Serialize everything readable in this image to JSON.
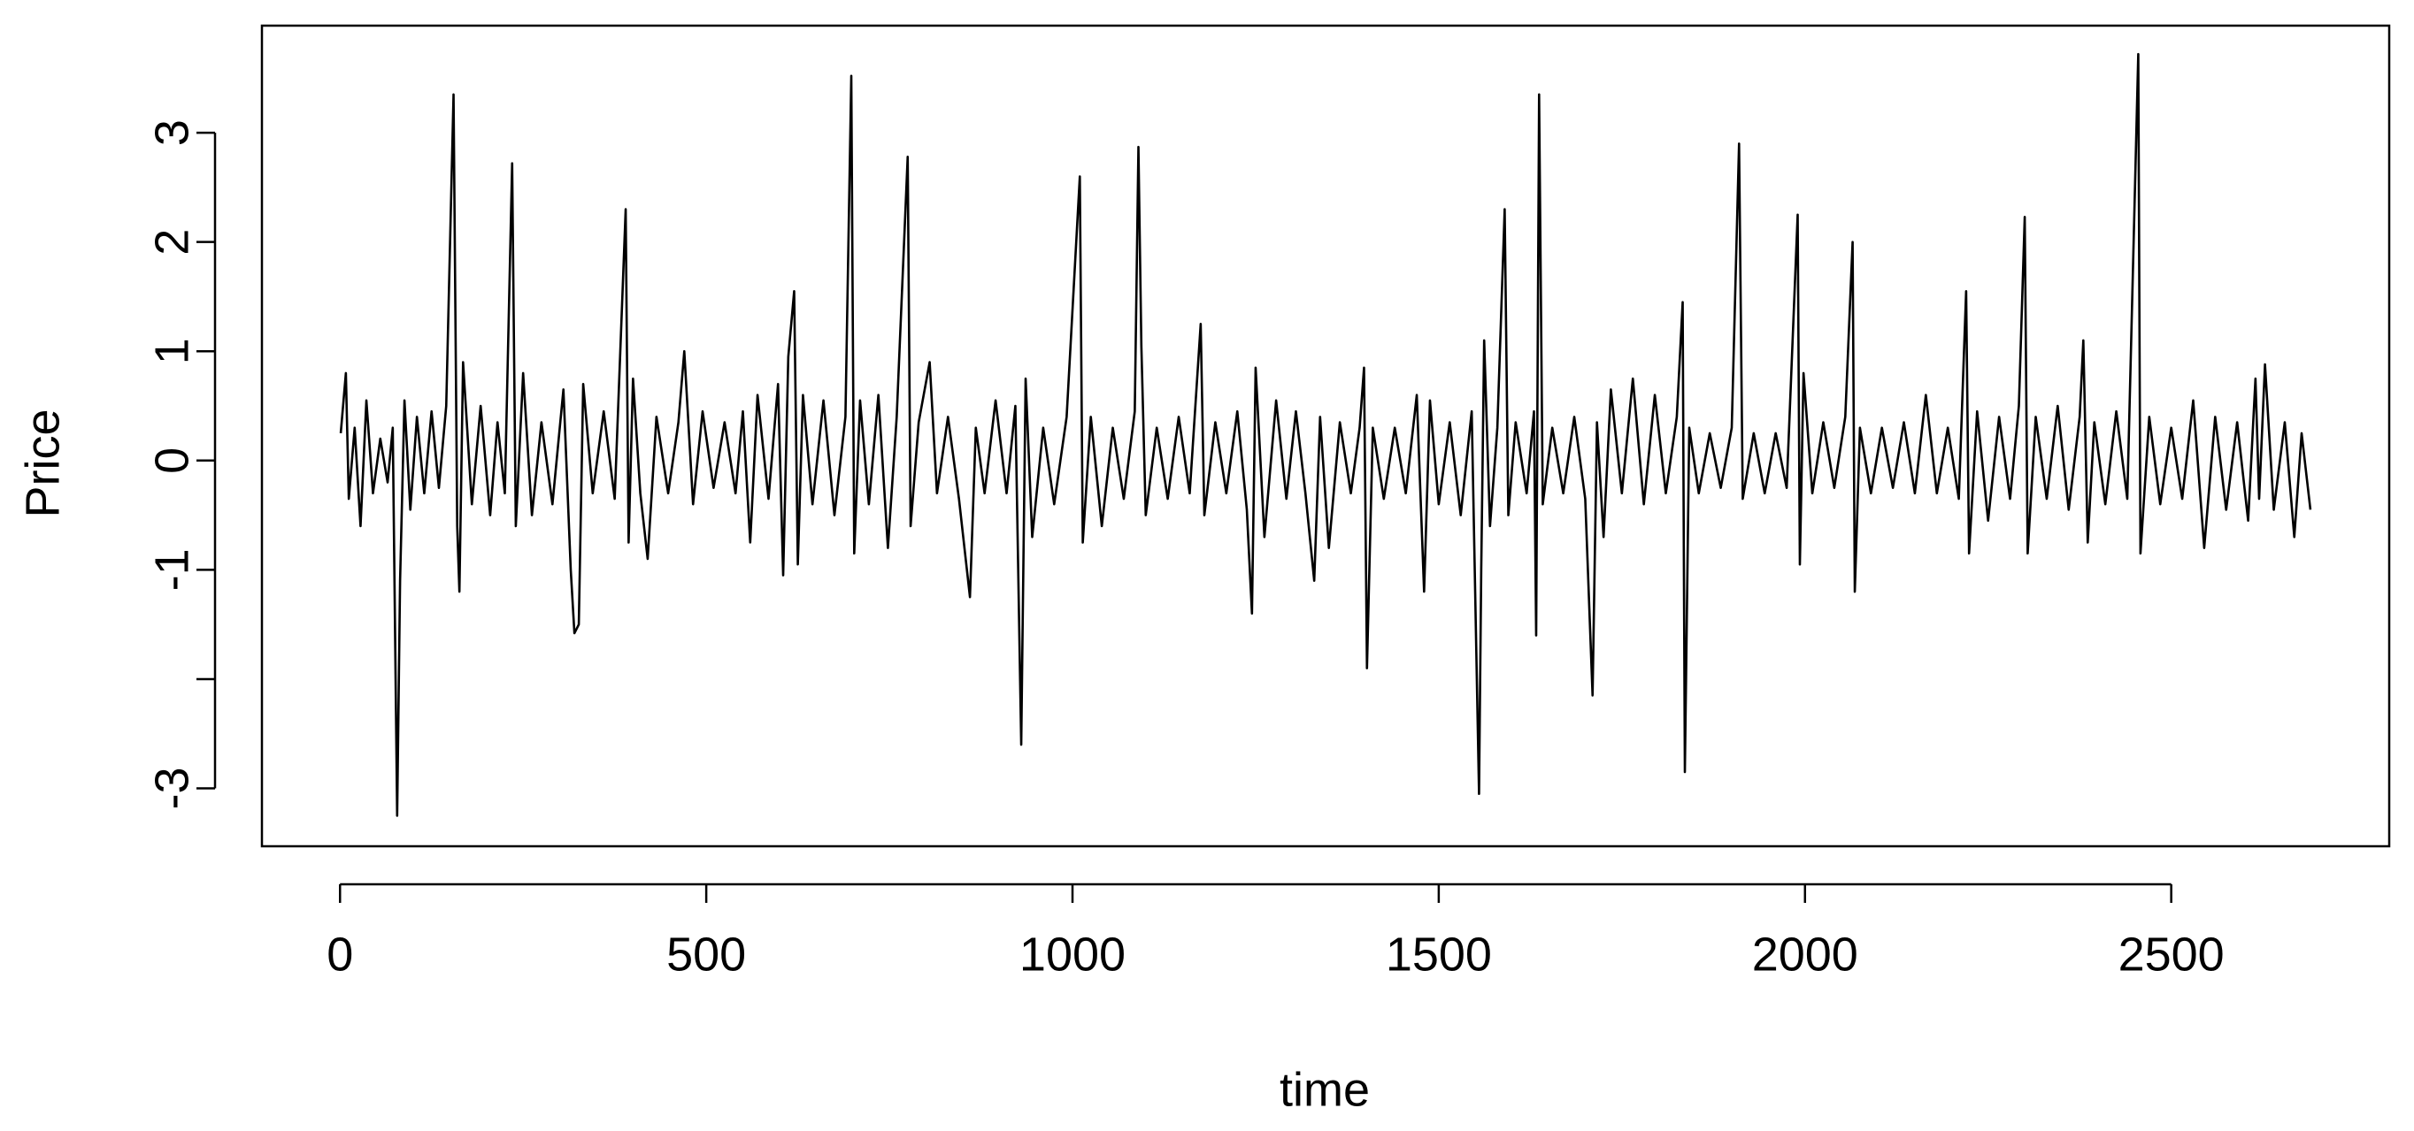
{
  "chart_data": {
    "type": "line",
    "xlabel": "time",
    "ylabel": "Price",
    "xlim": [
      -106.6,
      2797.6
    ],
    "ylim": [
      -3.53,
      3.98
    ],
    "xticks": [
      0,
      500,
      1000,
      1500,
      2000,
      2500
    ],
    "yticks": [
      -3,
      {
        "value": -2,
        "label": null
      },
      -1,
      0,
      1,
      2,
      3
    ],
    "color": "#000000",
    "box": true,
    "x": [
      1,
      8,
      12,
      20,
      28,
      36,
      45,
      55,
      65,
      72,
      78,
      82,
      88,
      96,
      105,
      115,
      125,
      135,
      145,
      155,
      160,
      163,
      168,
      180,
      192,
      205,
      215,
      225,
      235,
      240,
      250,
      262,
      275,
      290,
      305,
      315,
      320,
      326,
      332,
      345,
      360,
      375,
      390,
      394,
      400,
      410,
      420,
      432,
      448,
      462,
      470,
      482,
      495,
      510,
      525,
      540,
      550,
      560,
      570,
      585,
      598,
      605,
      612,
      620,
      625,
      632,
      645,
      660,
      675,
      690,
      698,
      702,
      710,
      722,
      735,
      748,
      760,
      775,
      779,
      790,
      805,
      815,
      830,
      845,
      860,
      868,
      880,
      895,
      910,
      922,
      930,
      936,
      945,
      960,
      975,
      992,
      1010,
      1014,
      1025,
      1040,
      1055,
      1070,
      1085,
      1090,
      1094,
      1100,
      1115,
      1130,
      1145,
      1160,
      1175,
      1180,
      1195,
      1210,
      1225,
      1238,
      1245,
      1250,
      1262,
      1278,
      1292,
      1305,
      1318,
      1330,
      1338,
      1350,
      1365,
      1380,
      1392,
      1398,
      1402,
      1410,
      1425,
      1440,
      1455,
      1470,
      1480,
      1488,
      1500,
      1515,
      1530,
      1545,
      1555,
      1558,
      1562,
      1570,
      1580,
      1590,
      1595,
      1605,
      1620,
      1630,
      1633,
      1637,
      1642,
      1655,
      1670,
      1685,
      1700,
      1710,
      1716,
      1725,
      1735,
      1750,
      1765,
      1780,
      1795,
      1810,
      1825,
      1833,
      1836,
      1842,
      1855,
      1870,
      1885,
      1900,
      1910,
      1915,
      1930,
      1945,
      1960,
      1975,
      1990,
      1993,
      1998,
      2010,
      2025,
      2040,
      2055,
      2065,
      2068,
      2075,
      2090,
      2105,
      2120,
      2135,
      2150,
      2165,
      2180,
      2195,
      2210,
      2220,
      2224,
      2235,
      2250,
      2265,
      2280,
      2292,
      2300,
      2304,
      2315,
      2330,
      2345,
      2360,
      2375,
      2380,
      2386,
      2395,
      2410,
      2425,
      2440,
      2455,
      2458,
      2470,
      2485,
      2500,
      2515,
      2530,
      2545,
      2560,
      2575,
      2590,
      2605,
      2615,
      2620,
      2628,
      2640,
      2655,
      2668,
      2678,
      2690
    ],
    "values": [
      0.25,
      0.8,
      -0.35,
      0.3,
      -0.6,
      0.55,
      -0.3,
      0.2,
      -0.2,
      0.3,
      -3.25,
      -1.1,
      0.55,
      -0.45,
      0.4,
      -0.3,
      0.45,
      -0.25,
      0.5,
      3.35,
      -0.6,
      -1.2,
      0.9,
      -0.4,
      0.5,
      -0.5,
      0.35,
      -0.3,
      2.72,
      -0.6,
      0.8,
      -0.5,
      0.35,
      -0.4,
      0.65,
      -1.0,
      -1.58,
      -1.5,
      0.7,
      -0.3,
      0.45,
      -0.35,
      2.3,
      -0.75,
      0.75,
      -0.3,
      -0.9,
      0.4,
      -0.3,
      0.35,
      1.0,
      -0.4,
      0.45,
      -0.25,
      0.35,
      -0.3,
      0.45,
      -0.75,
      0.6,
      -0.35,
      0.7,
      -1.05,
      0.95,
      1.55,
      -0.95,
      0.6,
      -0.4,
      0.55,
      -0.5,
      0.4,
      3.52,
      -0.85,
      0.55,
      -0.4,
      0.6,
      -0.8,
      0.4,
      2.78,
      -0.6,
      0.35,
      0.9,
      -0.3,
      0.4,
      -0.35,
      -1.25,
      0.3,
      -0.3,
      0.55,
      -0.3,
      0.5,
      -2.6,
      0.75,
      -0.7,
      0.3,
      -0.4,
      0.4,
      2.6,
      -0.75,
      0.4,
      -0.6,
      0.3,
      -0.35,
      0.45,
      2.87,
      1.05,
      -0.5,
      0.3,
      -0.35,
      0.4,
      -0.3,
      1.25,
      -0.5,
      0.35,
      -0.3,
      0.45,
      -0.45,
      -1.4,
      0.85,
      -0.7,
      0.55,
      -0.35,
      0.45,
      -0.3,
      -1.1,
      0.4,
      -0.8,
      0.35,
      -0.3,
      0.3,
      0.85,
      -1.9,
      0.3,
      -0.35,
      0.3,
      -0.3,
      0.6,
      -1.2,
      0.55,
      -0.4,
      0.35,
      -0.5,
      0.45,
      -3.05,
      -1.0,
      1.1,
      -0.6,
      0.3,
      2.3,
      -0.5,
      0.35,
      -0.3,
      0.45,
      -1.6,
      3.35,
      -0.4,
      0.3,
      -0.3,
      0.4,
      -0.35,
      -2.15,
      0.35,
      -0.7,
      0.65,
      -0.3,
      0.75,
      -0.4,
      0.6,
      -0.3,
      0.4,
      1.45,
      -2.85,
      0.3,
      -0.3,
      0.25,
      -0.25,
      0.3,
      2.9,
      -0.35,
      0.25,
      -0.3,
      0.25,
      -0.25,
      2.25,
      -0.95,
      0.8,
      -0.3,
      0.35,
      -0.25,
      0.4,
      2.0,
      -1.2,
      0.3,
      -0.3,
      0.3,
      -0.25,
      0.35,
      -0.3,
      0.6,
      -0.3,
      0.3,
      -0.35,
      1.55,
      -0.85,
      0.45,
      -0.55,
      0.4,
      -0.35,
      0.5,
      2.23,
      -0.85,
      0.4,
      -0.35,
      0.5,
      -0.45,
      0.4,
      1.1,
      -0.75,
      0.35,
      -0.4,
      0.45,
      -0.35,
      3.72,
      -0.85,
      0.4,
      -0.4,
      0.3,
      -0.35,
      0.55,
      -0.8,
      0.4,
      -0.45,
      0.35,
      -0.55,
      0.75,
      -0.35,
      0.88,
      -0.45,
      0.35,
      -0.7,
      0.25,
      -0.45
    ]
  }
}
